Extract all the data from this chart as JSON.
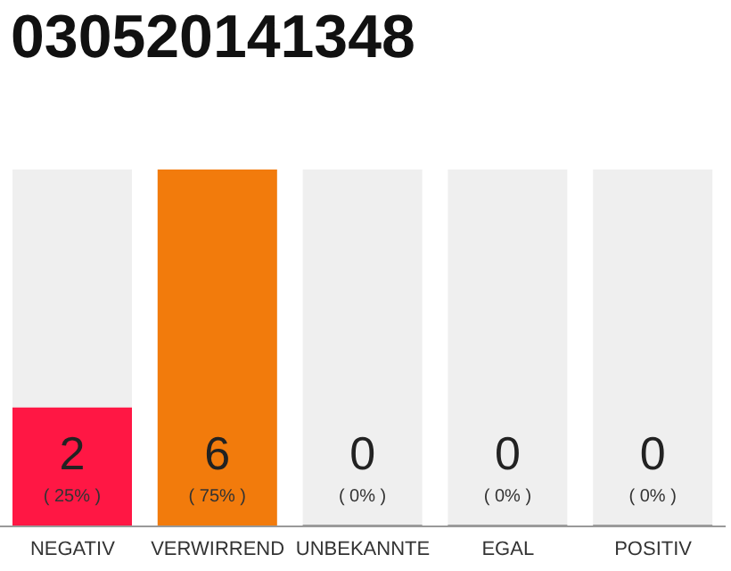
{
  "chart_data": {
    "type": "bar",
    "title": "030520141348",
    "categories": [
      "NEGATIV",
      "VERWIRREND",
      "UNBEKANNTE",
      "EGAL",
      "POSITIV"
    ],
    "values": [
      2,
      6,
      0,
      0,
      0
    ],
    "colors": [
      "#ff1744",
      "#f27b0c",
      "#9e9e9e",
      "#9e9e9e",
      "#9e9e9e"
    ],
    "data_labels": true,
    "annotations": [
      "( 25% )",
      "( 75% )",
      "( 0% )",
      "( 0% )",
      "( 0% )"
    ],
    "tick_labels": "x"
  }
}
